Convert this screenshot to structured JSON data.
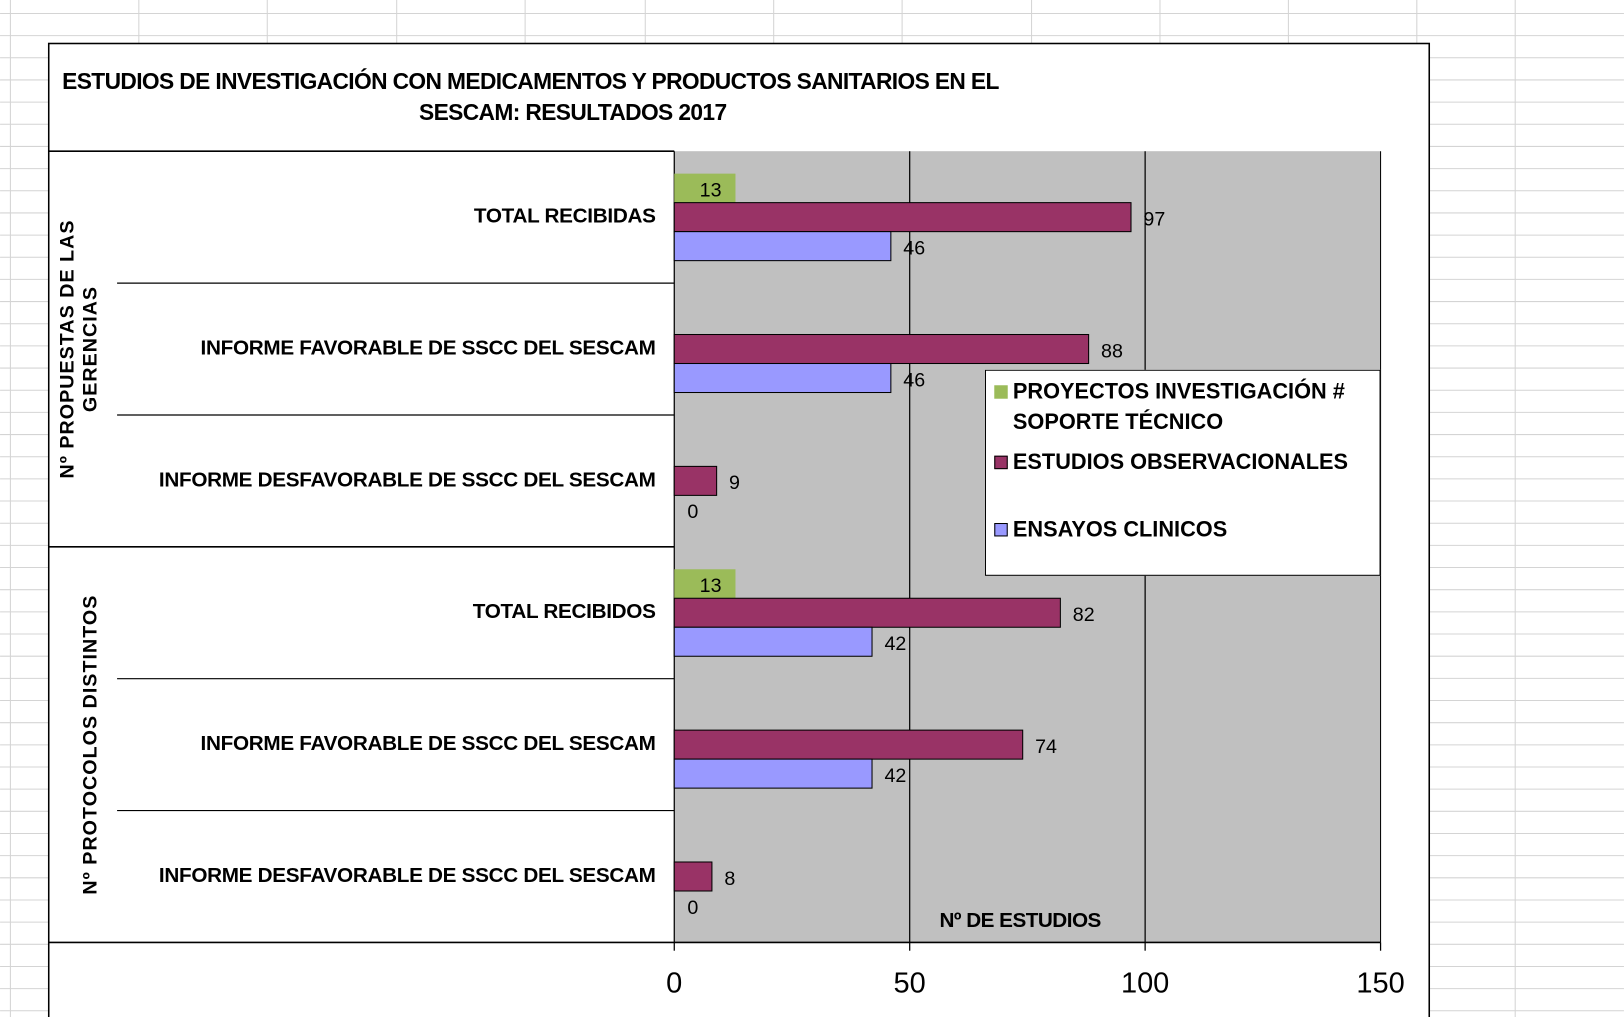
{
  "chart_data": {
    "type": "bar",
    "orientation": "horizontal",
    "title_lines": [
      "ESTUDIOS DE INVESTIGACIÓN CON MEDICAMENTOS Y PRODUCTOS SANITARIOS EN EL",
      "SESCAM: RESULTADOS 2017"
    ],
    "groups": [
      {
        "label_lines": [
          "Nº PROPUESTAS DE LAS",
          "GERENCIAS"
        ],
        "categories": [
          "TOTAL RECIBIDAS",
          "INFORME FAVORABLE DE SSCC DEL SESCAM",
          "INFORME DESFAVORABLE DE SSCC DEL SESCAM"
        ]
      },
      {
        "label_lines": [
          "Nº PROTOCOLOS DISTINTOS"
        ],
        "categories": [
          "TOTAL RECIBIDOS",
          "INFORME FAVORABLE DE SSCC DEL SESCAM",
          "INFORME DESFAVORABLE DE SSCC DEL SESCAM"
        ]
      }
    ],
    "series": [
      {
        "name": "PROYECTOS INVESTIGACIÓN # SOPORTE TÉCNICO",
        "color": "#9bbb59",
        "values": [
          13,
          null,
          null,
          13,
          null,
          null
        ]
      },
      {
        "name": "ESTUDIOS OBSERVACIONALES",
        "color": "#993366",
        "values": [
          97,
          88,
          9,
          82,
          74,
          8
        ]
      },
      {
        "name": "ENSAYOS CLINICOS",
        "color": "#9999ff",
        "values": [
          46,
          46,
          0,
          42,
          42,
          0
        ]
      }
    ],
    "xlabel": "Nº DE ESTUDIOS",
    "xlim": [
      0,
      150
    ],
    "xticks": [
      0,
      50,
      100,
      150
    ],
    "grid": true,
    "plot_background": "#c0c0c0"
  }
}
